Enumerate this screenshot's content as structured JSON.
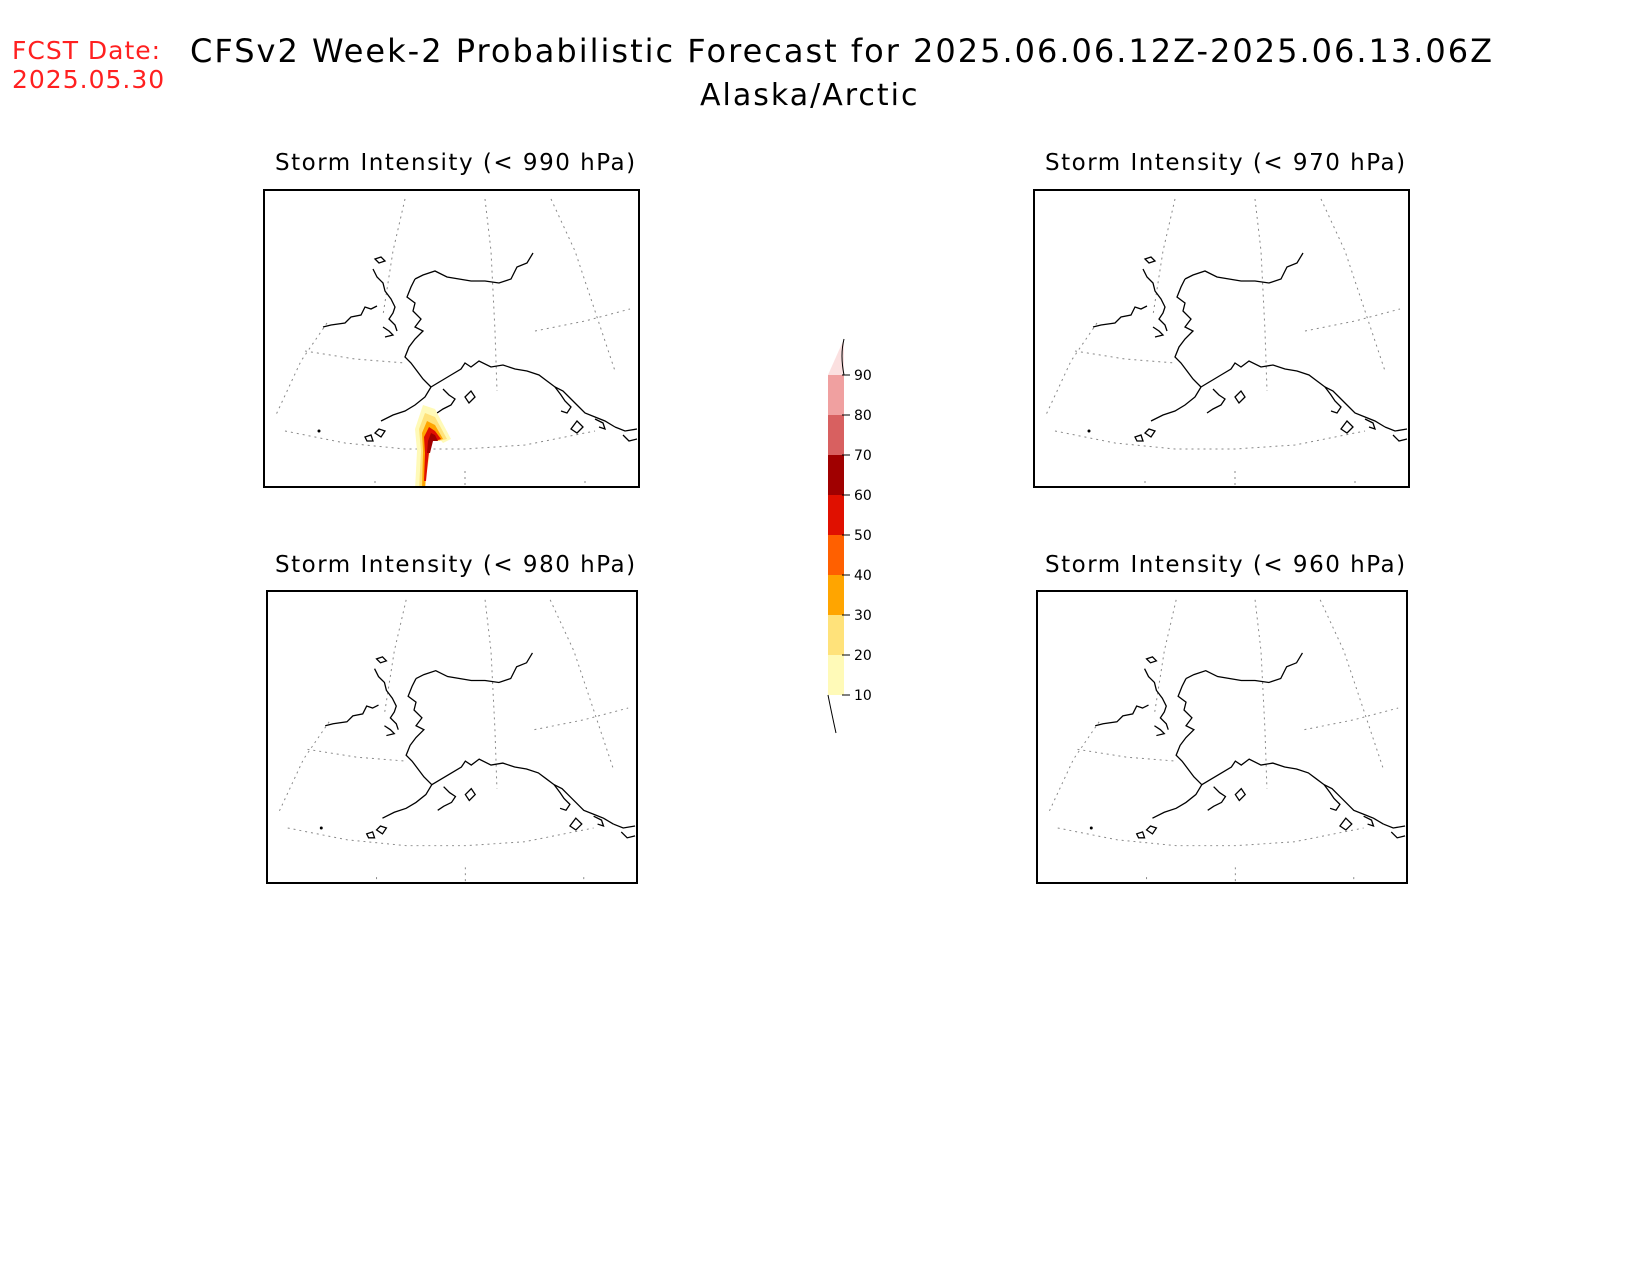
{
  "fcst_date": {
    "label": "FCST Date:",
    "value": "2025.05.30"
  },
  "title": "CFSv2 Week-2 Probabilistic Forecast for 2025.06.06.12Z-2025.06.13.06Z",
  "subtitle": "Alaska/Arctic",
  "panels": [
    {
      "title": "Storm Intensity (< 990 hPa)",
      "has_probability": true
    },
    {
      "title": "Storm Intensity (< 970 hPa)",
      "has_probability": false
    },
    {
      "title": "Storm Intensity (< 980 hPa)",
      "has_probability": false
    },
    {
      "title": "Storm Intensity (< 960 hPa)",
      "has_probability": false
    }
  ],
  "colorbar": {
    "levels": [
      "10",
      "20",
      "30",
      "40",
      "50",
      "60",
      "70",
      "80",
      "90"
    ],
    "colors": [
      "#fffab8",
      "#ffe27a",
      "#ffa500",
      "#ff6000",
      "#e01000",
      "#a00000",
      "#d86060",
      "#f0a0a0",
      "#fbe0e0"
    ]
  }
}
